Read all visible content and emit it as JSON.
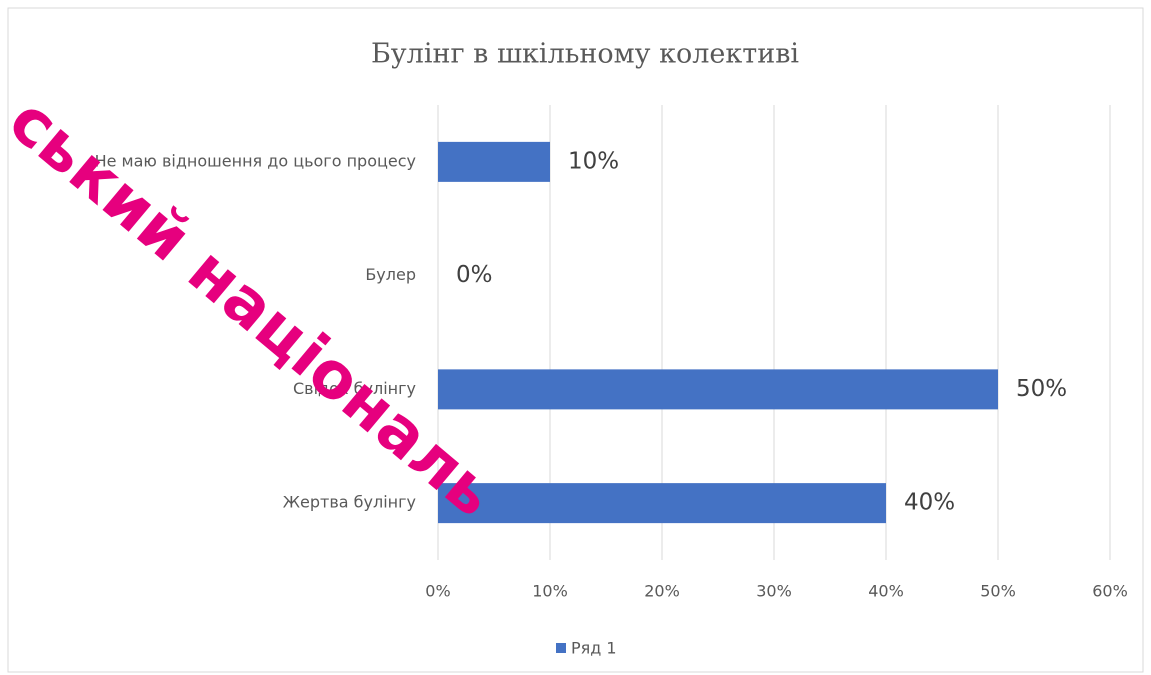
{
  "chart_data": {
    "type": "bar",
    "orientation": "horizontal",
    "title": "Булінг в шкільному колективі",
    "categories": [
      "Не маю відношення до цього процесу",
      "Булер",
      "Свідок булінгу",
      "Жертва булінгу"
    ],
    "series": [
      {
        "name": "Ряд 1",
        "color": "#4472c4",
        "values": [
          10,
          0,
          50,
          40
        ],
        "value_labels": [
          "10%",
          "0%",
          "50%",
          "40%"
        ]
      }
    ],
    "xlim": [
      0,
      60
    ],
    "xticks": [
      {
        "value": 0,
        "label": "0%"
      },
      {
        "value": 10,
        "label": "10%"
      },
      {
        "value": 20,
        "label": "20%"
      },
      {
        "value": 30,
        "label": "30%"
      },
      {
        "value": 40,
        "label": "40%"
      },
      {
        "value": 50,
        "label": "50%"
      },
      {
        "value": 60,
        "label": "60%"
      }
    ],
    "grid": true,
    "legend": "bottom"
  },
  "watermark": "ський національ"
}
